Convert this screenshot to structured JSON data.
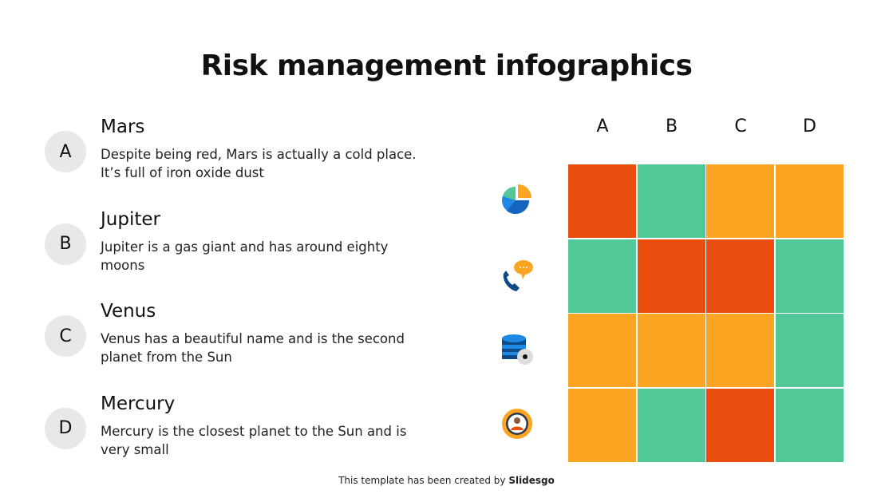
{
  "title": "Risk management infographics",
  "items": [
    {
      "letter": "A",
      "name": "Mars",
      "desc": "Despite being red, Mars is actually a cold place. It’s full of iron oxide dust"
    },
    {
      "letter": "B",
      "name": "Jupiter",
      "desc": "Jupiter is a gas giant and has around eighty moons"
    },
    {
      "letter": "C",
      "name": "Venus",
      "desc": "Venus has a beautiful name and is the second planet from the Sun"
    },
    {
      "letter": "D",
      "name": "Mercury",
      "desc": "Mercury is the closest planet to the Sun and is very small"
    }
  ],
  "columns": [
    "A",
    "B",
    "C",
    "D"
  ],
  "row_icons": [
    "pie-chart-icon",
    "phone-chat-icon",
    "database-gear-icon",
    "user-gear-icon"
  ],
  "colors": {
    "red": "#e94e0f",
    "green": "#52c898",
    "orange": "#fca522"
  },
  "matrix": [
    [
      "red",
      "green",
      "orange",
      "orange"
    ],
    [
      "green",
      "red",
      "red",
      "green"
    ],
    [
      "orange",
      "orange",
      "orange",
      "green"
    ],
    [
      "orange",
      "green",
      "red",
      "green"
    ]
  ],
  "footer": {
    "text": "This template has been created by ",
    "brand": "Slidesgo"
  }
}
